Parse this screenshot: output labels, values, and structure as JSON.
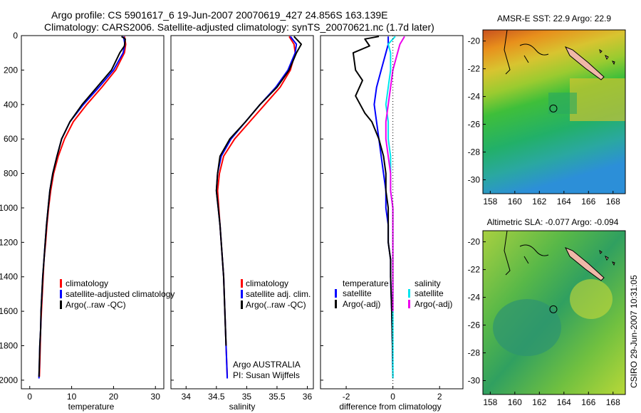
{
  "header": {
    "line1": "Argo profile: CS 5901617_6 19-Jun-2007 20070619_427 24.856S 163.139E",
    "line2": "Climatology: CARS2006. Satellite-adjusted climatology: synTS_20070621.nc (1.7d later)"
  },
  "credits": {
    "program": "Argo AUSTRALIA",
    "pi": "PI: Susan Wijffels",
    "stamp": "CSIRO 29-Jun-2007 10:31:05"
  },
  "chart_data": [
    {
      "type": "line",
      "id": "temperature",
      "xlabel": "temperature",
      "ylabel": "",
      "xlim": [
        -2,
        32
      ],
      "ylim": [
        2050,
        0
      ],
      "xticks": [
        0,
        10,
        20,
        30
      ],
      "yticks": [
        0,
        200,
        400,
        600,
        800,
        1000,
        1200,
        1400,
        1600,
        1800,
        2000
      ],
      "legend": {
        "placement": "lower-left",
        "entries": [
          "climatology",
          "satellite-adjusted climatology",
          "Argo(..raw -QC)"
        ]
      },
      "series": [
        {
          "name": "climatology",
          "color": "#ff0000",
          "points": [
            [
              22.6,
              5
            ],
            [
              22.9,
              50
            ],
            [
              22.6,
              100
            ],
            [
              20.5,
              200
            ],
            [
              17.2,
              300
            ],
            [
              13.6,
              400
            ],
            [
              10.4,
              500
            ],
            [
              8.3,
              600
            ],
            [
              6.8,
              700
            ],
            [
              5.7,
              800
            ],
            [
              5.0,
              900
            ],
            [
              4.5,
              1000
            ],
            [
              4.1,
              1100
            ],
            [
              3.8,
              1200
            ],
            [
              3.4,
              1300
            ],
            [
              3.2,
              1400
            ],
            [
              3.0,
              1500
            ],
            [
              2.8,
              1600
            ],
            [
              2.6,
              1700
            ],
            [
              2.5,
              1800
            ],
            [
              2.4,
              1900
            ],
            [
              2.3,
              1980
            ]
          ]
        },
        {
          "name": "satellite-adjusted climatology",
          "color": "#0000ff",
          "points": [
            [
              22.4,
              5
            ],
            [
              22.7,
              50
            ],
            [
              22.3,
              100
            ],
            [
              20.0,
              200
            ],
            [
              16.5,
              300
            ],
            [
              12.8,
              400
            ],
            [
              9.6,
              500
            ],
            [
              7.6,
              600
            ],
            [
              6.5,
              700
            ],
            [
              5.5,
              800
            ],
            [
              4.8,
              900
            ],
            [
              4.4,
              1000
            ],
            [
              4.0,
              1100
            ],
            [
              3.7,
              1200
            ],
            [
              3.4,
              1300
            ],
            [
              3.1,
              1400
            ],
            [
              2.9,
              1500
            ],
            [
              2.7,
              1600
            ],
            [
              2.6,
              1700
            ],
            [
              2.4,
              1800
            ],
            [
              2.3,
              1900
            ],
            [
              2.2,
              1990
            ]
          ]
        },
        {
          "name": "Argo(..raw -QC)",
          "color": "#000000",
          "points": [
            [
              21.9,
              5
            ],
            [
              22.8,
              20
            ],
            [
              22.6,
              60
            ],
            [
              21.5,
              100
            ],
            [
              19.5,
              200
            ],
            [
              16.0,
              300
            ],
            [
              12.5,
              400
            ],
            [
              9.6,
              500
            ],
            [
              7.6,
              600
            ],
            [
              6.5,
              700
            ],
            [
              5.5,
              800
            ],
            [
              4.8,
              900
            ],
            [
              4.4,
              1000
            ],
            [
              4.0,
              1100
            ],
            [
              3.7,
              1200
            ],
            [
              3.4,
              1300
            ],
            [
              3.1,
              1400
            ],
            [
              2.9,
              1500
            ],
            [
              2.7,
              1600
            ],
            [
              2.6,
              1700
            ],
            [
              2.4,
              1800
            ],
            [
              2.3,
              1900
            ],
            [
              2.2,
              1980
            ]
          ]
        }
      ]
    },
    {
      "type": "line",
      "id": "salinity",
      "xlabel": "salinity",
      "ylabel": "",
      "xlim": [
        33.75,
        36.1
      ],
      "ylim": [
        2050,
        0
      ],
      "xticks": [
        34,
        34.5,
        35,
        35.5,
        36
      ],
      "legend": {
        "placement": "lower-right",
        "entries": [
          "climatology",
          "satellite adj. clim.",
          "Argo(..raw -QC)"
        ]
      },
      "series": [
        {
          "name": "climatology",
          "color": "#ff0000",
          "points": [
            [
              35.7,
              5
            ],
            [
              35.78,
              50
            ],
            [
              35.8,
              100
            ],
            [
              35.72,
              200
            ],
            [
              35.55,
              300
            ],
            [
              35.3,
              400
            ],
            [
              35.05,
              500
            ],
            [
              34.8,
              600
            ],
            [
              34.62,
              700
            ],
            [
              34.55,
              800
            ],
            [
              34.52,
              900
            ],
            [
              34.54,
              1000
            ],
            [
              34.56,
              1100
            ],
            [
              34.58,
              1200
            ],
            [
              34.6,
              1300
            ],
            [
              34.62,
              1400
            ],
            [
              34.64,
              1600
            ],
            [
              34.66,
              1800
            ],
            [
              34.68,
              1980
            ]
          ]
        },
        {
          "name": "satellite adj. clim.",
          "color": "#0000ff",
          "points": [
            [
              35.72,
              5
            ],
            [
              35.82,
              50
            ],
            [
              35.8,
              100
            ],
            [
              35.68,
              200
            ],
            [
              35.48,
              300
            ],
            [
              35.22,
              400
            ],
            [
              34.98,
              500
            ],
            [
              34.74,
              600
            ],
            [
              34.58,
              700
            ],
            [
              34.52,
              800
            ],
            [
              34.5,
              900
            ],
            [
              34.53,
              1000
            ],
            [
              34.56,
              1100
            ],
            [
              34.58,
              1200
            ],
            [
              34.6,
              1300
            ],
            [
              34.62,
              1400
            ],
            [
              34.64,
              1600
            ],
            [
              34.66,
              1800
            ],
            [
              34.68,
              1990
            ]
          ]
        },
        {
          "name": "Argo(..raw -QC)",
          "color": "#000000",
          "points": [
            [
              35.78,
              5
            ],
            [
              35.9,
              50
            ],
            [
              35.82,
              100
            ],
            [
              35.7,
              200
            ],
            [
              35.5,
              300
            ],
            [
              35.22,
              400
            ],
            [
              34.98,
              500
            ],
            [
              34.72,
              600
            ],
            [
              34.56,
              700
            ],
            [
              34.52,
              800
            ],
            [
              34.5,
              900
            ],
            [
              34.53,
              1000
            ],
            [
              34.56,
              1100
            ],
            [
              34.58,
              1200
            ],
            [
              34.6,
              1300
            ],
            [
              34.62,
              1400
            ],
            [
              34.64,
              1600
            ],
            [
              34.66,
              1800
            ]
          ]
        }
      ]
    },
    {
      "type": "line",
      "id": "difference",
      "xlabel": "difference from climatology",
      "ylabel": "",
      "xlim": [
        -3.1,
        3.0
      ],
      "ylim": [
        2050,
        0
      ],
      "xticks": [
        -2,
        0,
        2
      ],
      "legend": {
        "placement": "lower-center",
        "groups": [
          "temperature",
          "salinity"
        ],
        "entries": [
          "satellite",
          "Argo(-adj)",
          "satellite",
          "Argo(-adj)"
        ]
      },
      "series": [
        {
          "name": "satellite",
          "color": "#0000ff",
          "points": [
            [
              -0.2,
              5
            ],
            [
              -0.2,
              50
            ],
            [
              -0.3,
              100
            ],
            [
              -0.5,
              200
            ],
            [
              -0.7,
              300
            ],
            [
              -0.8,
              400
            ],
            [
              -0.7,
              500
            ],
            [
              -0.6,
              600
            ],
            [
              -0.5,
              700
            ],
            [
              -0.4,
              800
            ],
            [
              -0.3,
              900
            ],
            [
              -0.3,
              1000
            ],
            [
              -0.2,
              1100
            ],
            [
              -0.2,
              1200
            ],
            [
              -0.1,
              1300
            ],
            [
              -0.1,
              1400
            ],
            [
              -0.05,
              1600
            ],
            [
              -0.02,
              1800
            ],
            [
              0,
              1980
            ]
          ]
        },
        {
          "name": "Argo(-adj)",
          "color": "#000000",
          "points": [
            [
              -0.6,
              5
            ],
            [
              -1.2,
              20
            ],
            [
              -1.0,
              60
            ],
            [
              -1.7,
              100
            ],
            [
              -1.6,
              200
            ],
            [
              -1.3,
              260
            ],
            [
              -1.6,
              350
            ],
            [
              -1.2,
              450
            ],
            [
              -0.9,
              500
            ],
            [
              -0.6,
              600
            ],
            [
              -0.4,
              700
            ],
            [
              -0.3,
              800
            ],
            [
              -0.3,
              900
            ],
            [
              -0.2,
              1000
            ],
            [
              -0.2,
              1100
            ],
            [
              -0.2,
              1200
            ],
            [
              -0.1,
              1300
            ],
            [
              -0.1,
              1400
            ],
            [
              -0.05,
              1600
            ],
            [
              -0.02,
              1800
            ],
            [
              0,
              1980
            ]
          ]
        },
        {
          "name": "satellite",
          "color": "#00e5ee",
          "points": [
            [
              0.1,
              5
            ],
            [
              -0.2,
              50
            ],
            [
              -0.1,
              100
            ],
            [
              -0.1,
              200
            ],
            [
              -0.2,
              300
            ],
            [
              -0.3,
              400
            ],
            [
              -0.2,
              500
            ],
            [
              -0.2,
              600
            ],
            [
              -0.1,
              700
            ],
            [
              -0.1,
              800
            ],
            [
              -0.1,
              900
            ],
            [
              0,
              1000
            ],
            [
              0,
              1200
            ],
            [
              0,
              1400
            ],
            [
              0,
              1600
            ],
            [
              0,
              1800
            ],
            [
              0,
              1990
            ]
          ]
        },
        {
          "name": "Argo(-adj)",
          "color": "#ee00ee",
          "points": [
            [
              0.5,
              5
            ],
            [
              0.3,
              50
            ],
            [
              0.2,
              100
            ],
            [
              0,
              200
            ],
            [
              -0.1,
              300
            ],
            [
              -0.2,
              400
            ],
            [
              -0.3,
              500
            ],
            [
              -0.3,
              600
            ],
            [
              -0.2,
              700
            ],
            [
              -0.1,
              800
            ],
            [
              -0.1,
              900
            ],
            [
              0,
              1000
            ],
            [
              0,
              1200
            ],
            [
              0,
              1400
            ],
            [
              0,
              1600
            ]
          ]
        }
      ]
    },
    {
      "type": "heatmap",
      "id": "sst-map",
      "title": "AMSR-E SST: 22.9 Argo: 22.9",
      "xlim": [
        157.4,
        169
      ],
      "ylim": [
        -31,
        -19.2
      ],
      "xticks": [
        158,
        160,
        162,
        164,
        166,
        168
      ],
      "yticks": [
        -20,
        -22,
        -24,
        -26,
        -28,
        -30
      ],
      "float_position": [
        163.14,
        -24.86
      ]
    },
    {
      "type": "heatmap",
      "id": "sla-map",
      "title": "Altimetric SLA: -0.077 Argo: -0.094",
      "xlim": [
        157.4,
        169
      ],
      "ylim": [
        -31,
        -19.2
      ],
      "xticks": [
        158,
        160,
        162,
        164,
        166,
        168
      ],
      "yticks": [
        -20,
        -22,
        -24,
        -26,
        -28,
        -30
      ],
      "float_position": [
        163.14,
        -24.86
      ]
    }
  ]
}
